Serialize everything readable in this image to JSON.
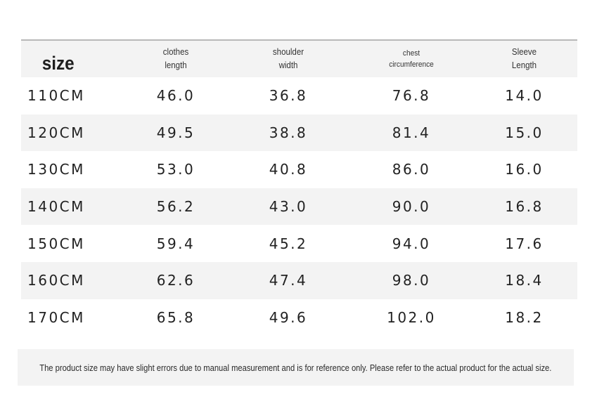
{
  "table": {
    "headers": {
      "size": "size",
      "clothes_length": "clothes\nlength",
      "shoulder_width": "shoulder\nwidth",
      "chest_circumference": "chest\ncircumference",
      "sleeve_length": "Sleeve\nLength"
    },
    "rows": [
      {
        "size": "110CM",
        "clothes_length": "46.0",
        "shoulder_width": "36.8",
        "chest": "76.8",
        "sleeve": "14.0"
      },
      {
        "size": "120CM",
        "clothes_length": "49.5",
        "shoulder_width": "38.8",
        "chest": "81.4",
        "sleeve": "15.0"
      },
      {
        "size": "130CM",
        "clothes_length": "53.0",
        "shoulder_width": "40.8",
        "chest": "86.0",
        "sleeve": "16.0"
      },
      {
        "size": "140CM",
        "clothes_length": "56.2",
        "shoulder_width": "43.0",
        "chest": "90.0",
        "sleeve": "16.8"
      },
      {
        "size": "150CM",
        "clothes_length": "59.4",
        "shoulder_width": "45.2",
        "chest": "94.0",
        "sleeve": "17.6"
      },
      {
        "size": "160CM",
        "clothes_length": "62.6",
        "shoulder_width": "47.4",
        "chest": "98.0",
        "sleeve": "18.4"
      },
      {
        "size": "170CM",
        "clothes_length": "65.8",
        "shoulder_width": "49.6",
        "chest": "102.0",
        "sleeve": "18.2"
      }
    ]
  },
  "note": "The product size may have slight errors due to manual measurement and is for reference only. Please refer to the actual product for the actual size.",
  "colors": {
    "shade": "#f3f3f3",
    "text": "#222222",
    "rule": "#b8b8b8"
  }
}
